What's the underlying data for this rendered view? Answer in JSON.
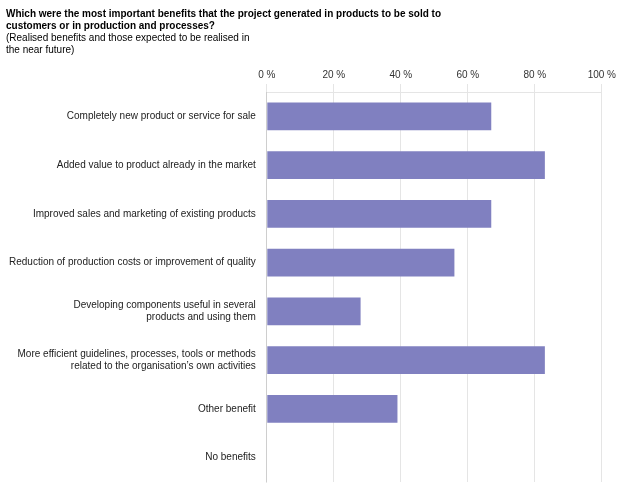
{
  "chart_data": {
    "type": "bar",
    "orientation": "horizontal",
    "title": "Which were the most important benefits that the project generated in products to be sold to\ncustomers or in production and processes?",
    "subtitle": "(Realised benefits and those expected to be realised in\nthe near future)",
    "categories": [
      "No benefits",
      "Other benefit",
      "More efficient guidelines, processes, tools or methods\nrelated to the organisation’s own activities",
      "Developing components useful in several\nproducts and using them",
      "Reduction of production costs or improvement of quality",
      "Improved sales and marketing of existing products",
      "Added value to product already in the market",
      "Completely new product or service for sale"
    ],
    "values": [
      0,
      39,
      83,
      28,
      56,
      67,
      83,
      67
    ],
    "color": "#8080c0",
    "xlim": [
      0,
      100
    ],
    "xticks": [
      {
        "value": 0,
        "label": "0 %"
      },
      {
        "value": 20,
        "label": "20 %"
      },
      {
        "value": 40,
        "label": "40 %"
      },
      {
        "value": 60,
        "label": "60 %"
      },
      {
        "value": 80,
        "label": "80 %"
      },
      {
        "value": 100,
        "label": "100 %"
      }
    ],
    "grid": true
  }
}
